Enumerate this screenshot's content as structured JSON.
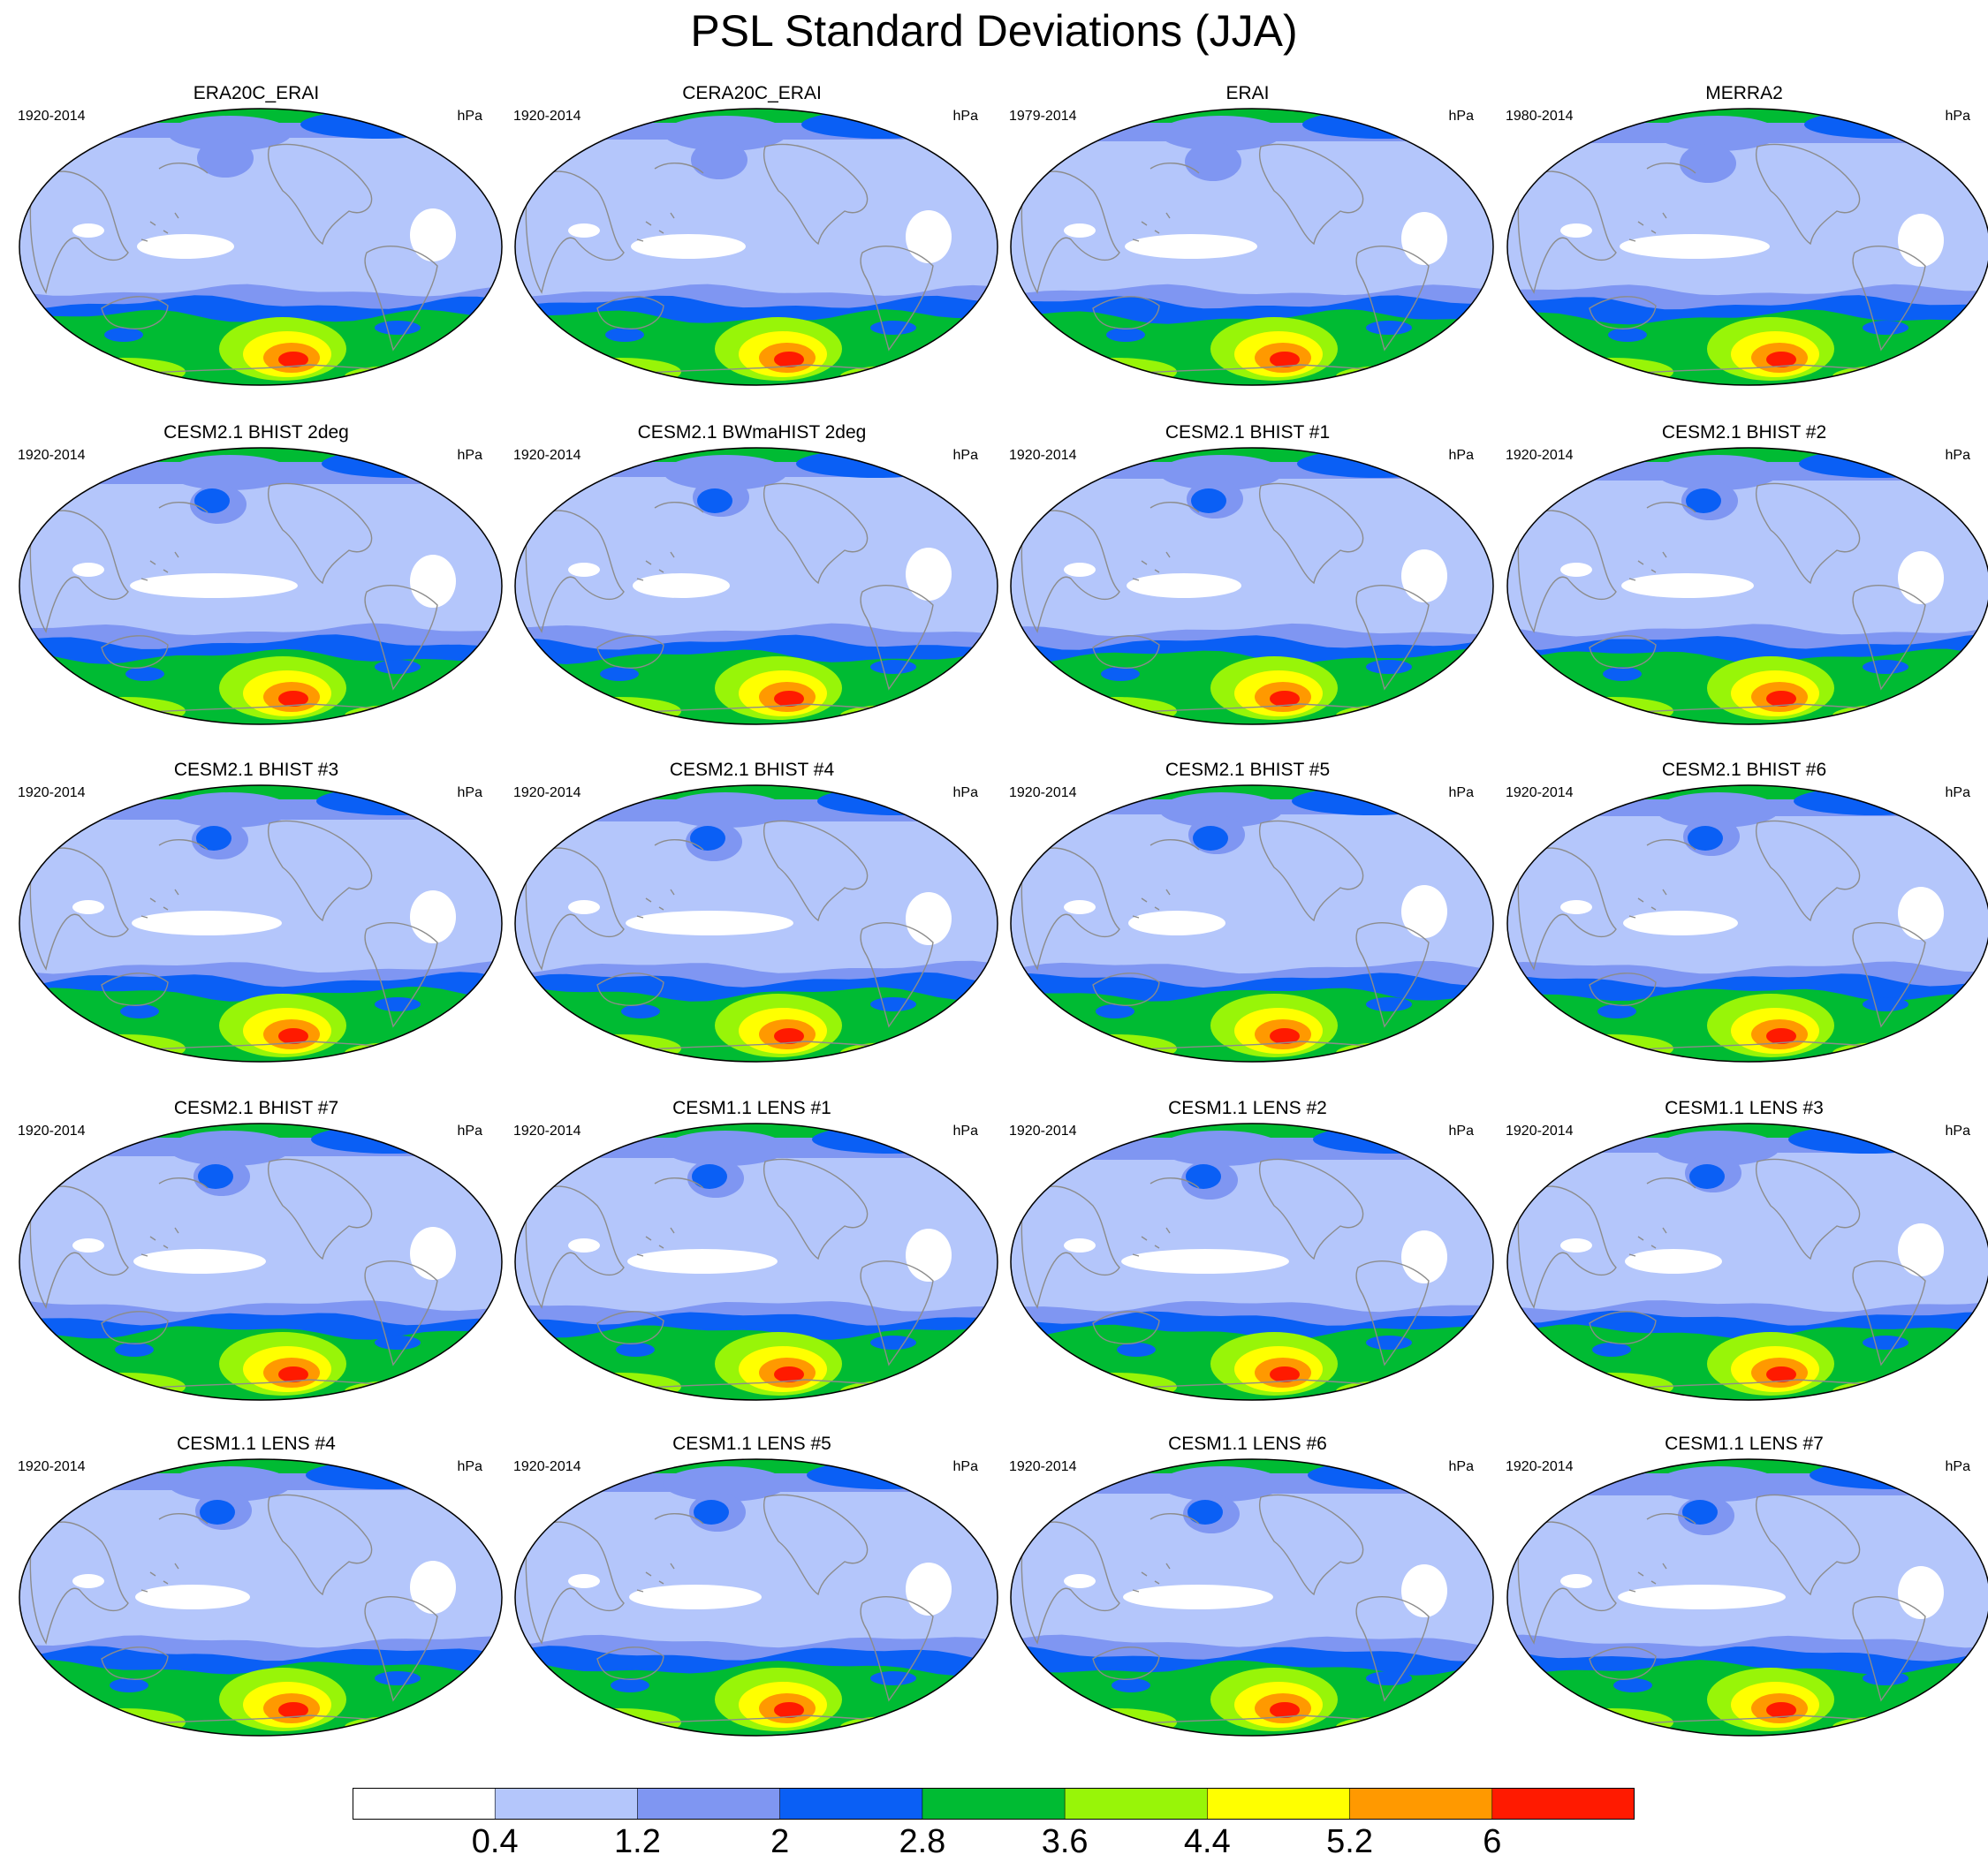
{
  "title": "PSL Standard Deviations (JJA)",
  "unit": "hPa",
  "panels": [
    {
      "title": "ERA20C_ERAI",
      "period": "1920-2014"
    },
    {
      "title": "CERA20C_ERAI",
      "period": "1920-2014"
    },
    {
      "title": "ERAI",
      "period": "1979-2014"
    },
    {
      "title": "MERRA2",
      "period": "1980-2014"
    },
    {
      "title": "CESM2.1 BHIST 2deg",
      "period": "1920-2014"
    },
    {
      "title": "CESM2.1 BWmaHIST 2deg",
      "period": "1920-2014"
    },
    {
      "title": "CESM2.1 BHIST #1",
      "period": "1920-2014"
    },
    {
      "title": "CESM2.1 BHIST #2",
      "period": "1920-2014"
    },
    {
      "title": "CESM2.1 BHIST #3",
      "period": "1920-2014"
    },
    {
      "title": "CESM2.1 BHIST #4",
      "period": "1920-2014"
    },
    {
      "title": "CESM2.1 BHIST #5",
      "period": "1920-2014"
    },
    {
      "title": "CESM2.1 BHIST #6",
      "period": "1920-2014"
    },
    {
      "title": "CESM2.1 BHIST #7",
      "period": "1920-2014"
    },
    {
      "title": "CESM1.1 LENS #1",
      "period": "1920-2014"
    },
    {
      "title": "CESM1.1 LENS #2",
      "period": "1920-2014"
    },
    {
      "title": "CESM1.1 LENS #3",
      "period": "1920-2014"
    },
    {
      "title": "CESM1.1 LENS #4",
      "period": "1920-2014"
    },
    {
      "title": "CESM1.1 LENS #5",
      "period": "1920-2014"
    },
    {
      "title": "CESM1.1 LENS #6",
      "period": "1920-2014"
    },
    {
      "title": "CESM1.1 LENS #7",
      "period": "1920-2014"
    }
  ],
  "colorbar": {
    "labels": [
      "0.4",
      "1.2",
      "2",
      "2.8",
      "3.6",
      "4.4",
      "5.2",
      "6"
    ],
    "colors": [
      "#ffffff",
      "#b4c6fb",
      "#7f96f2",
      "#0a5ff5",
      "#00bb33",
      "#98f508",
      "#ffff00",
      "#ff9900",
      "#ff1a00"
    ]
  },
  "colors": {
    "land_outline": "#8c8c8c",
    "map_border": "#000000"
  }
}
